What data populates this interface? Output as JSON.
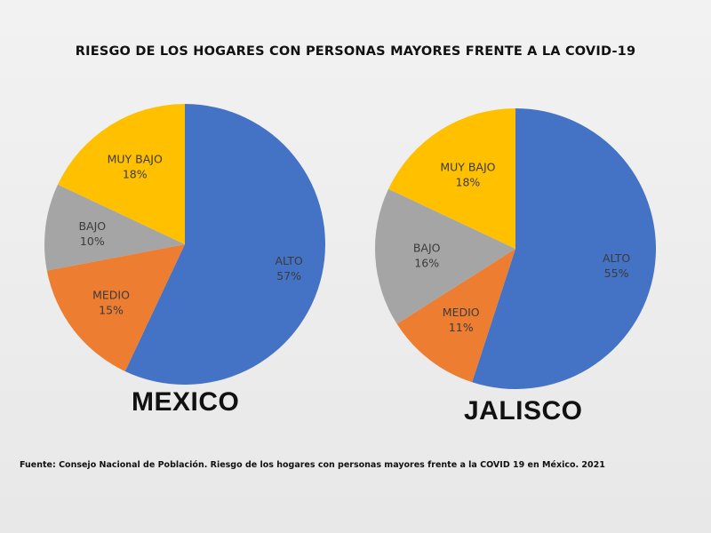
{
  "title": "RIESGO DE LOS HOGARES CON PERSONAS  MAYORES FRENTE A LA COVID-19",
  "source": "Fuente: Consejo Nacional de Población. Riesgo de los hogares con personas mayores frente a la COVID 19 en México.  2021",
  "colors": {
    "alto": "#4472c4",
    "medio": "#ed7d31",
    "bajo": "#a5a5a5",
    "muy_bajo": "#ffc000"
  },
  "chart_data": [
    {
      "type": "pie",
      "title": "MEXICO",
      "categories": [
        "ALTO",
        "MEDIO",
        "BAJO",
        "MUY BAJO"
      ],
      "values": [
        57,
        15,
        10,
        18
      ],
      "labels": [
        "57%",
        "15%",
        "10%",
        "18%"
      ]
    },
    {
      "type": "pie",
      "title": "JALISCO",
      "categories": [
        "ALTO",
        "MEDIO",
        "BAJO",
        "MUY BAJO"
      ],
      "values": [
        55,
        11,
        16,
        18
      ],
      "labels": [
        "55%",
        "11%",
        "16%",
        "18%"
      ]
    }
  ]
}
